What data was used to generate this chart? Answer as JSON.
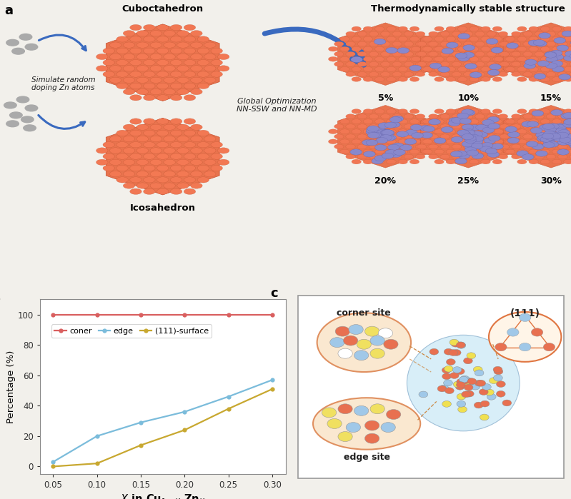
{
  "panel_a": {
    "cuboctahedron_label": "Cuboctahedron",
    "icosahedron_label": "Icosahedron",
    "simulate_text": "Simulate random\ndoping Zn atoms",
    "global_opt_text": "Global Optimization\nNN-SSW and NN-MD",
    "thermo_title": "Thermodynamically stable structure",
    "percentages": [
      "5%",
      "10%",
      "15%",
      "20%",
      "25%",
      "30%"
    ]
  },
  "panel_b": {
    "x": [
      0.05,
      0.1,
      0.15,
      0.2,
      0.25,
      0.3
    ],
    "corner": [
      100,
      100,
      100,
      100,
      100,
      100
    ],
    "edge": [
      3,
      20,
      29,
      36,
      46,
      57
    ],
    "surface111": [
      0,
      2,
      14,
      24,
      38,
      51
    ],
    "xlabel": "$X$ in Cu$_{1-X}$ Zn$_X$",
    "ylabel": "Percentage (%)",
    "ylim": [
      -5,
      110
    ],
    "yticks": [
      0,
      20,
      40,
      60,
      80,
      100
    ],
    "xticks": [
      0.05,
      0.1,
      0.15,
      0.2,
      0.25,
      0.3
    ],
    "xtick_labels": [
      "0.05",
      "0.10",
      "0.15",
      "0.20",
      "0.25",
      "0.30"
    ],
    "corner_color": "#d95f5f",
    "edge_color": "#7bbcdb",
    "surface_color": "#c8a830",
    "corner_label": "coner",
    "edge_label": "edge",
    "surface_label": "(111)-surface"
  },
  "panel_c": {
    "corner_site_label": "corner site",
    "edge_site_label": "edge site",
    "surface_label": "(111)"
  },
  "bg_color": "#f2f0eb"
}
